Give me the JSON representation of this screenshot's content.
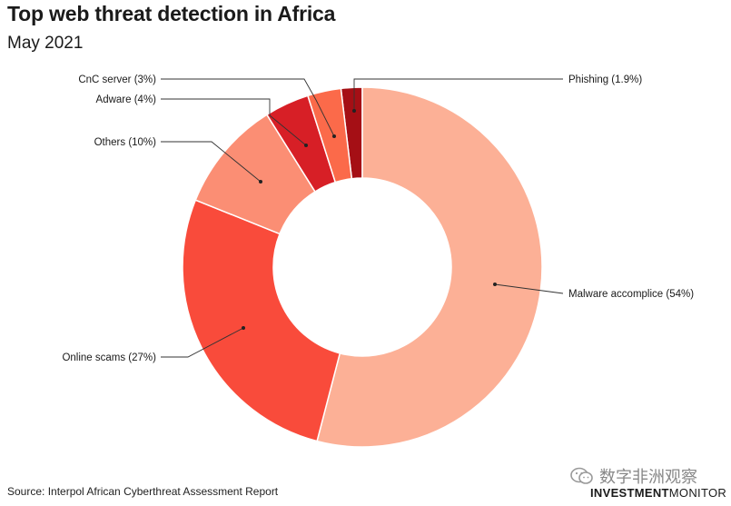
{
  "header": {
    "title": "Top web threat detection in Africa",
    "subtitle": "May 2021"
  },
  "footer": {
    "source": "Source: Interpol African Cyberthreat Assessment Report",
    "watermark_text": "数字非洲观察",
    "brand_bold": "INVESTMENT",
    "brand_light": "MONITOR"
  },
  "chart_data": {
    "type": "pie",
    "donut": true,
    "title": "Top web threat detection in Africa",
    "subtitle": "May 2021",
    "slices": [
      {
        "label": "Phishing",
        "value": 1.9,
        "text": "Phishing (1.9%)",
        "color": "#a50f15"
      },
      {
        "label": "Malware accomplice",
        "value": 54,
        "text": "Malware accomplice (54%)",
        "color": "#fcb096"
      },
      {
        "label": "Online scams",
        "value": 27,
        "text": "Online scams (27%)",
        "color": "#f94b3b"
      },
      {
        "label": "Others",
        "value": 10,
        "text": "Others (10%)",
        "color": "#fb8e74"
      },
      {
        "label": "Adware",
        "value": 4,
        "text": "Adware (4%)",
        "color": "#d71f26"
      },
      {
        "label": "CnC server",
        "value": 3,
        "text": "CnC server (3%)",
        "color": "#fb6a4a"
      }
    ],
    "source": "Source: Interpol African Cyberthreat Assessment Report"
  }
}
